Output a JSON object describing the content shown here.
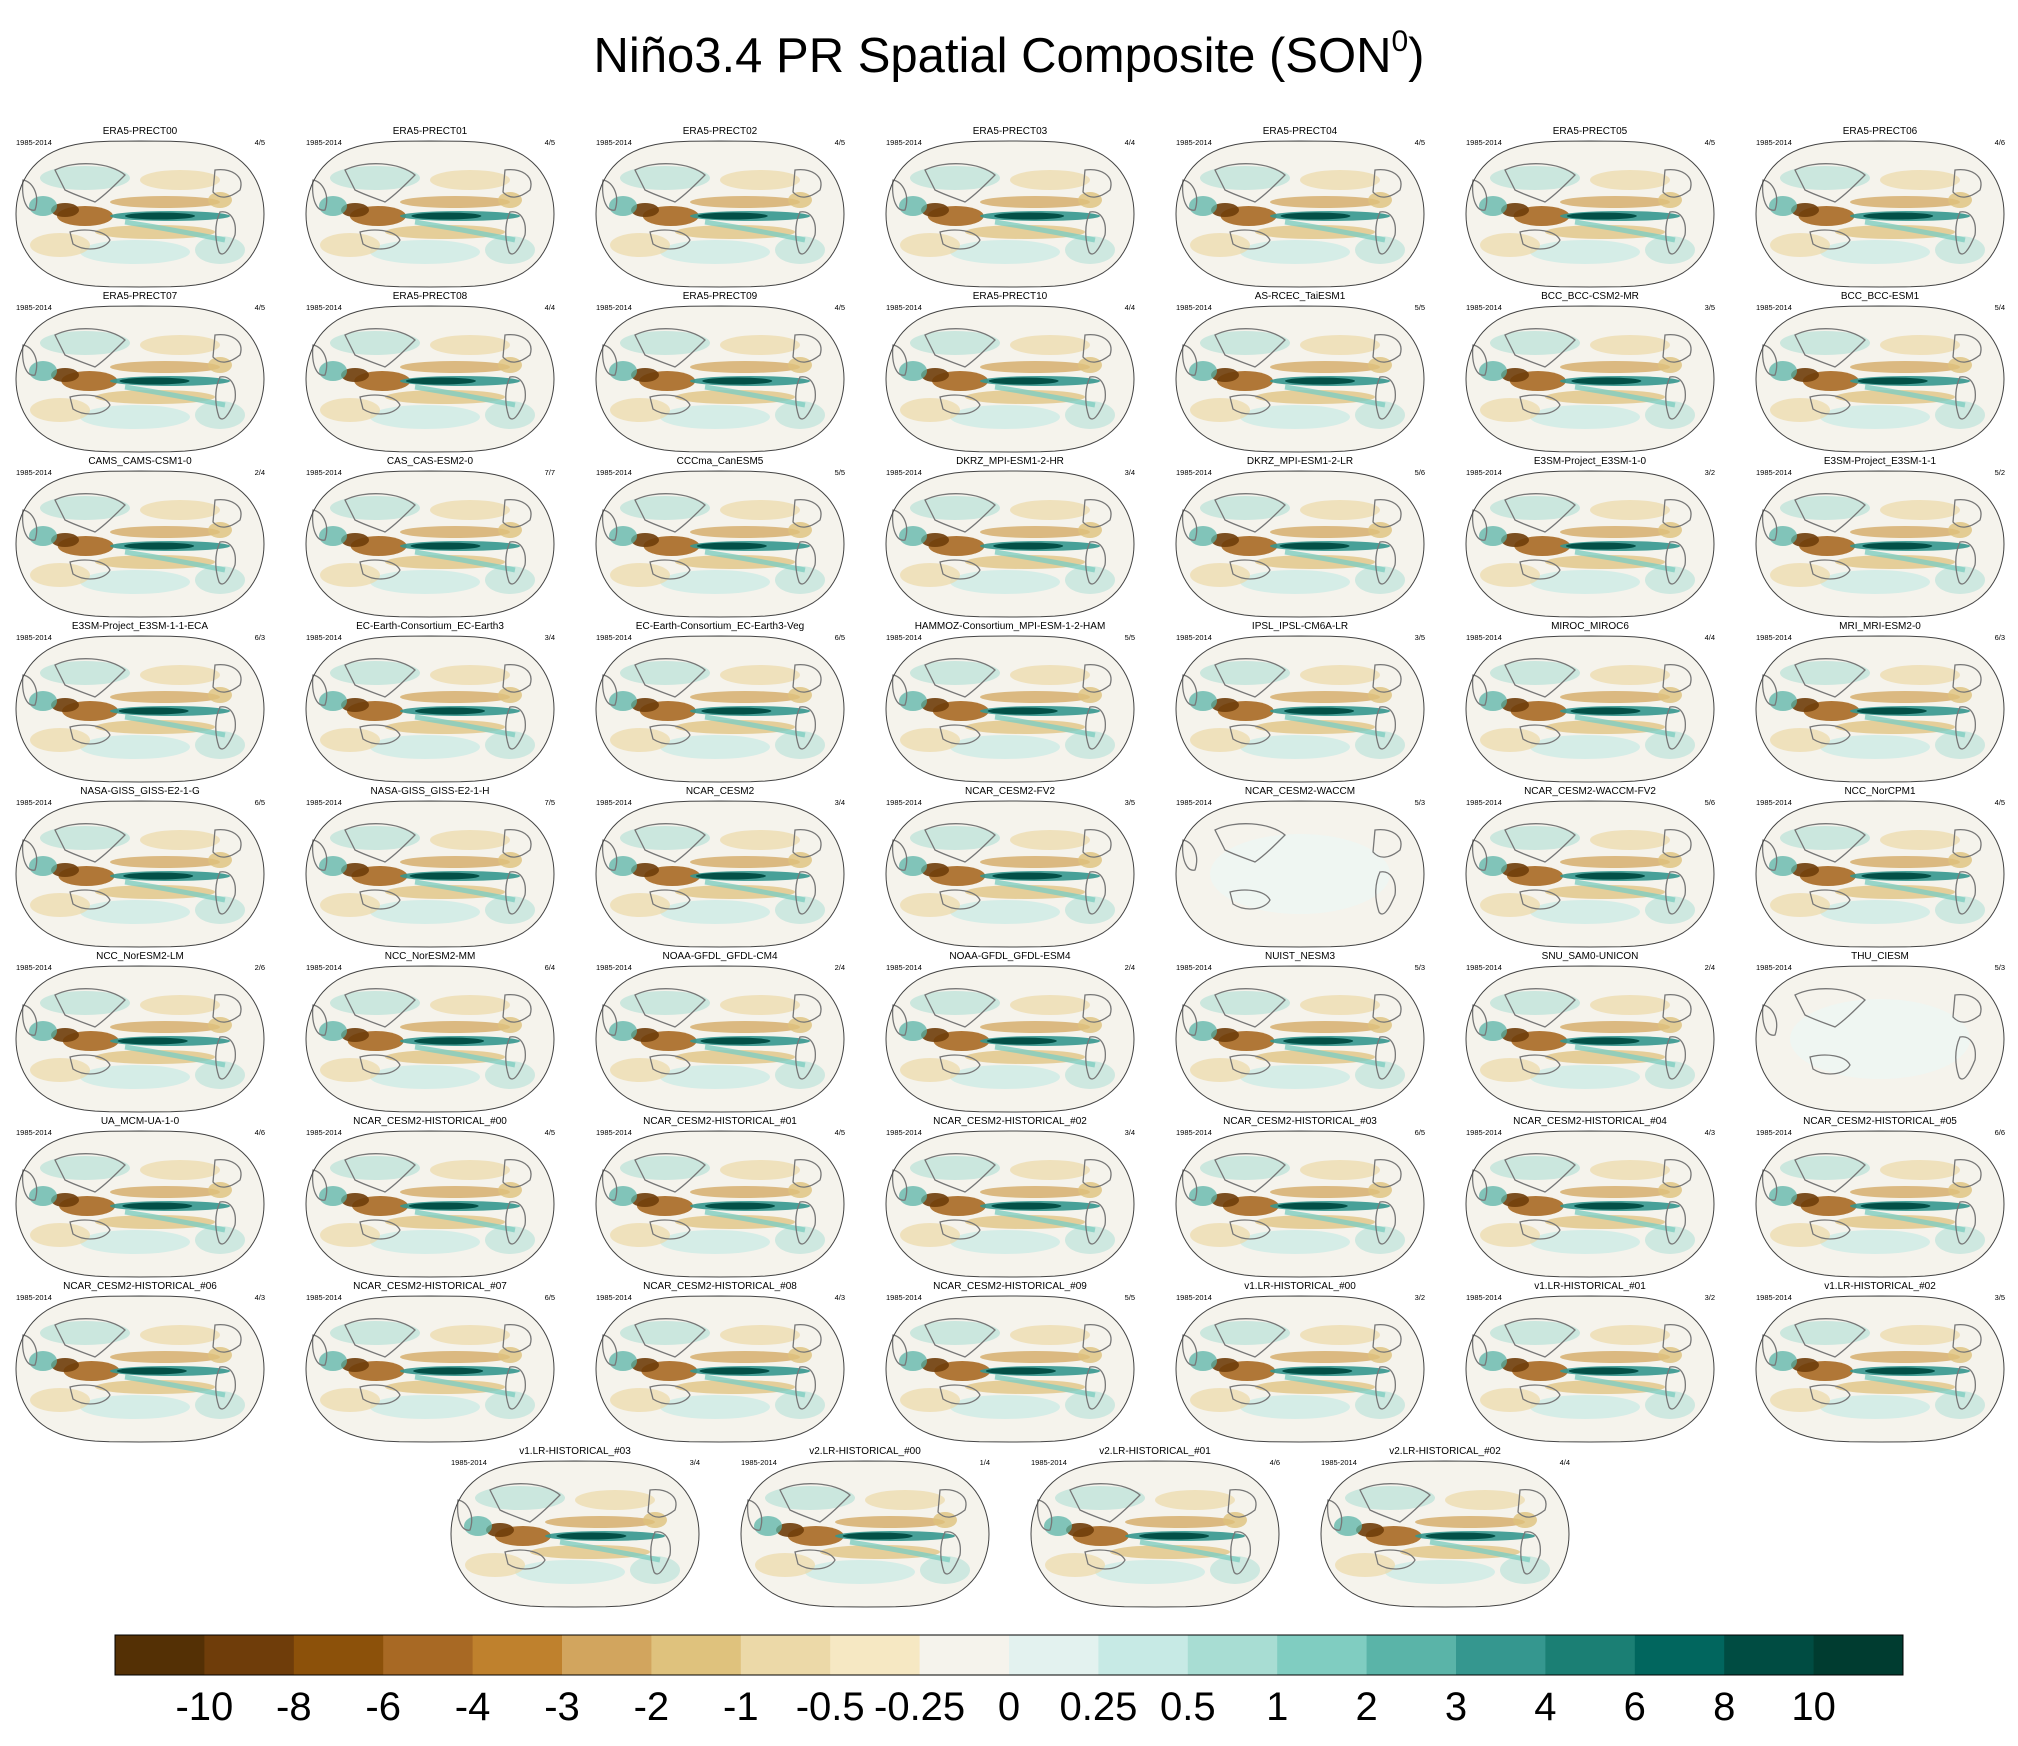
{
  "title": {
    "main": "Niño3.4 PR Spatial Composite (SON",
    "superscript": "0",
    "close": ")"
  },
  "chart_data": {
    "type": "heatmap",
    "title": "Niño3.4 PR Spatial Composite (SON0)",
    "projection": "Robinson global map, Pacific-centred",
    "panels": [
      {
        "name": "ERA5-PRECT00",
        "years": "1985-2014",
        "count": "4/5"
      },
      {
        "name": "ERA5-PRECT01",
        "years": "1985-2014",
        "count": "4/5"
      },
      {
        "name": "ERA5-PRECT02",
        "years": "1985-2014",
        "count": "4/5"
      },
      {
        "name": "ERA5-PRECT03",
        "years": "1985-2014",
        "count": "4/4"
      },
      {
        "name": "ERA5-PRECT04",
        "years": "1985-2014",
        "count": "4/5"
      },
      {
        "name": "ERA5-PRECT05",
        "years": "1985-2014",
        "count": "4/5"
      },
      {
        "name": "ERA5-PRECT06",
        "years": "1985-2014",
        "count": "4/6"
      },
      {
        "name": "ERA5-PRECT07",
        "years": "1985-2014",
        "count": "4/5"
      },
      {
        "name": "ERA5-PRECT08",
        "years": "1985-2014",
        "count": "4/4"
      },
      {
        "name": "ERA5-PRECT09",
        "years": "1985-2014",
        "count": "4/5"
      },
      {
        "name": "ERA5-PRECT10",
        "years": "1985-2014",
        "count": "4/4"
      },
      {
        "name": "AS-RCEC_TaiESM1",
        "years": "1985-2014",
        "count": "5/5"
      },
      {
        "name": "BCC_BCC-CSM2-MR",
        "years": "1985-2014",
        "count": "3/5"
      },
      {
        "name": "BCC_BCC-ESM1",
        "years": "1985-2014",
        "count": "5/4"
      },
      {
        "name": "CAMS_CAMS-CSM1-0",
        "years": "1985-2014",
        "count": "2/4"
      },
      {
        "name": "CAS_CAS-ESM2-0",
        "years": "1985-2014",
        "count": "7/7"
      },
      {
        "name": "CCCma_CanESM5",
        "years": "1985-2014",
        "count": "5/5"
      },
      {
        "name": "DKRZ_MPI-ESM1-2-HR",
        "years": "1985-2014",
        "count": "3/4"
      },
      {
        "name": "DKRZ_MPI-ESM1-2-LR",
        "years": "1985-2014",
        "count": "5/6"
      },
      {
        "name": "E3SM-Project_E3SM-1-0",
        "years": "1985-2014",
        "count": "3/2"
      },
      {
        "name": "E3SM-Project_E3SM-1-1",
        "years": "1985-2014",
        "count": "5/2"
      },
      {
        "name": "E3SM-Project_E3SM-1-1-ECA",
        "years": "1985-2014",
        "count": "6/3"
      },
      {
        "name": "EC-Earth-Consortium_EC-Earth3",
        "years": "1985-2014",
        "count": "3/4"
      },
      {
        "name": "EC-Earth-Consortium_EC-Earth3-Veg",
        "years": "1985-2014",
        "count": "6/5"
      },
      {
        "name": "HAMMOZ-Consortium_MPI-ESM-1-2-HAM",
        "years": "1985-2014",
        "count": "5/5"
      },
      {
        "name": "IPSL_IPSL-CM6A-LR",
        "years": "1985-2014",
        "count": "3/5"
      },
      {
        "name": "MIROC_MIROC6",
        "years": "1985-2014",
        "count": "4/4"
      },
      {
        "name": "MRI_MRI-ESM2-0",
        "years": "1985-2014",
        "count": "6/3"
      },
      {
        "name": "NASA-GISS_GISS-E2-1-G",
        "years": "1985-2014",
        "count": "6/5"
      },
      {
        "name": "NASA-GISS_GISS-E2-1-H",
        "years": "1985-2014",
        "count": "7/5"
      },
      {
        "name": "NCAR_CESM2",
        "years": "1985-2014",
        "count": "3/4"
      },
      {
        "name": "NCAR_CESM2-FV2",
        "years": "1985-2014",
        "count": "3/5"
      },
      {
        "name": "NCAR_CESM2-WACCM",
        "years": "1985-2014",
        "count": "5/3"
      },
      {
        "name": "NCAR_CESM2-WACCM-FV2",
        "years": "1985-2014",
        "count": "5/6"
      },
      {
        "name": "NCC_NorCPM1",
        "years": "1985-2014",
        "count": "4/5"
      },
      {
        "name": "NCC_NorESM2-LM",
        "years": "1985-2014",
        "count": "2/6"
      },
      {
        "name": "NCC_NorESM2-MM",
        "years": "1985-2014",
        "count": "6/4"
      },
      {
        "name": "NOAA-GFDL_GFDL-CM4",
        "years": "1985-2014",
        "count": "2/4"
      },
      {
        "name": "NOAA-GFDL_GFDL-ESM4",
        "years": "1985-2014",
        "count": "2/4"
      },
      {
        "name": "NUIST_NESM3",
        "years": "1985-2014",
        "count": "5/3"
      },
      {
        "name": "SNU_SAM0-UNICON",
        "years": "1985-2014",
        "count": "2/4"
      },
      {
        "name": "THU_CIESM",
        "years": "1985-2014",
        "count": "5/3"
      },
      {
        "name": "UA_MCM-UA-1-0",
        "years": "1985-2014",
        "count": "4/6"
      },
      {
        "name": "NCAR_CESM2-HISTORICAL_#00",
        "years": "1985-2014",
        "count": "4/5"
      },
      {
        "name": "NCAR_CESM2-HISTORICAL_#01",
        "years": "1985-2014",
        "count": "4/5"
      },
      {
        "name": "NCAR_CESM2-HISTORICAL_#02",
        "years": "1985-2014",
        "count": "3/4"
      },
      {
        "name": "NCAR_CESM2-HISTORICAL_#03",
        "years": "1985-2014",
        "count": "6/5"
      },
      {
        "name": "NCAR_CESM2-HISTORICAL_#04",
        "years": "1985-2014",
        "count": "4/3"
      },
      {
        "name": "NCAR_CESM2-HISTORICAL_#05",
        "years": "1985-2014",
        "count": "6/6"
      },
      {
        "name": "NCAR_CESM2-HISTORICAL_#06",
        "years": "1985-2014",
        "count": "4/3"
      },
      {
        "name": "NCAR_CESM2-HISTORICAL_#07",
        "years": "1985-2014",
        "count": "6/5"
      },
      {
        "name": "NCAR_CESM2-HISTORICAL_#08",
        "years": "1985-2014",
        "count": "4/3"
      },
      {
        "name": "NCAR_CESM2-HISTORICAL_#09",
        "years": "1985-2014",
        "count": "5/5"
      },
      {
        "name": "v1.LR-HISTORICAL_#00",
        "years": "1985-2014",
        "count": "3/2"
      },
      {
        "name": "v1.LR-HISTORICAL_#01",
        "years": "1985-2014",
        "count": "3/2"
      },
      {
        "name": "v1.LR-HISTORICAL_#02",
        "years": "1985-2014",
        "count": "3/5"
      },
      {
        "name": "v1.LR-HISTORICAL_#03",
        "years": "1985-2014",
        "count": "3/4"
      },
      {
        "name": "v2.LR-HISTORICAL_#00",
        "years": "1985-2014",
        "count": "1/4"
      },
      {
        "name": "v2.LR-HISTORICAL_#01",
        "years": "1985-2014",
        "count": "4/6"
      },
      {
        "name": "v2.LR-HISTORICAL_#02",
        "years": "1985-2014",
        "count": "4/4"
      }
    ],
    "colorbar": {
      "levels": [
        "-10",
        "-8",
        "-6",
        "-4",
        "-3",
        "-2",
        "-1",
        "-0.5",
        "-0.25",
        "0",
        "0.25",
        "0.5",
        "1",
        "2",
        "3",
        "4",
        "6",
        "8",
        "10"
      ],
      "colors": [
        "#543005",
        "#6f3d0a",
        "#8c510a",
        "#a86924",
        "#bf812d",
        "#d2a55e",
        "#dfc27d",
        "#ecd9a8",
        "#f6e8c3",
        "#f5f3ec",
        "#e3f2ef",
        "#c7eae5",
        "#a8ddd3",
        "#80cdc1",
        "#5ab4a8",
        "#35978f",
        "#1b7f74",
        "#01665e",
        "#004c42",
        "#003c30"
      ]
    }
  }
}
